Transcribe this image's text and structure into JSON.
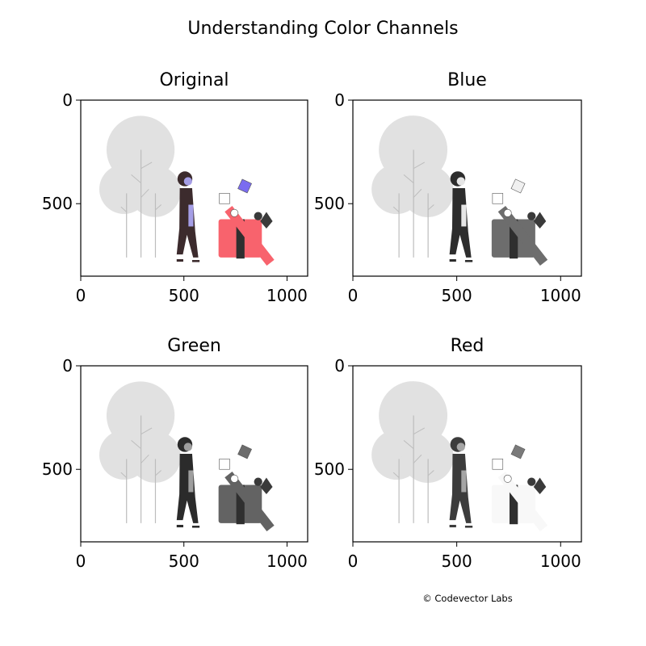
{
  "figure": {
    "title": "Understanding Color Channels",
    "credit": "© Codevector Labs"
  },
  "chart_data": [
    {
      "type": "image",
      "title": "Original",
      "channel": "rgb",
      "xlim": [
        0,
        1100
      ],
      "ylim": [
        850,
        0
      ],
      "xticks": [
        0,
        500,
        1000
      ],
      "yticks": [
        0,
        500
      ],
      "xticklabels": [
        "0",
        "500",
        "1000"
      ],
      "yticklabels": [
        "0",
        "500"
      ]
    },
    {
      "type": "image",
      "title": "Blue",
      "channel": "blue",
      "xlim": [
        0,
        1100
      ],
      "ylim": [
        850,
        0
      ],
      "xticks": [
        0,
        500,
        1000
      ],
      "yticks": [
        0,
        500
      ],
      "xticklabels": [
        "0",
        "500",
        "1000"
      ],
      "yticklabels": [
        "0",
        "500"
      ]
    },
    {
      "type": "image",
      "title": "Green",
      "channel": "green",
      "xlim": [
        0,
        1100
      ],
      "ylim": [
        850,
        0
      ],
      "xticks": [
        0,
        500,
        1000
      ],
      "yticks": [
        0,
        500
      ],
      "xticklabels": [
        "0",
        "500",
        "1000"
      ],
      "yticklabels": [
        "0",
        "500"
      ]
    },
    {
      "type": "image",
      "title": "Red",
      "channel": "red",
      "xlim": [
        0,
        1100
      ],
      "ylim": [
        850,
        0
      ],
      "xticks": [
        0,
        500,
        1000
      ],
      "yticks": [
        0,
        500
      ],
      "xticklabels": [
        "0",
        "500",
        "1000"
      ],
      "yticklabels": [
        "0",
        "500"
      ]
    }
  ],
  "palette": {
    "tree": "#e1e1e1",
    "trunk": "#bdbdbd",
    "skin": "#a59ee6",
    "coat": "#3c2b2d",
    "accent": "#7a6cf0",
    "gift": "#f8636d",
    "ribbon": "#2f2f2f",
    "bow": "#3a3a3a"
  }
}
